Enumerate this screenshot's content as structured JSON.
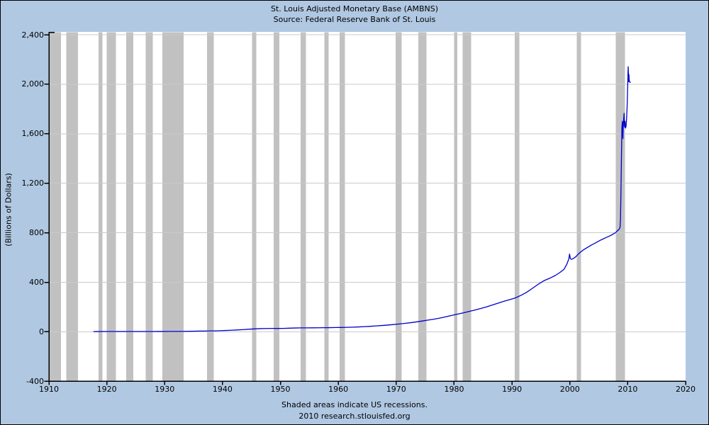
{
  "header": {
    "title": "St. Louis Adjusted Monetary Base (AMBNS)",
    "subtitle": "Source: Federal Reserve Bank of St. Louis"
  },
  "footer": {
    "note": "Shaded areas indicate US recessions.",
    "credit": "2010 research.stlouisfed.org"
  },
  "colors": {
    "page_background": "#B0C8E2",
    "plot_background": "#FFFFFF",
    "recession_band": "#C1C1C1",
    "gridline": "#CACACA",
    "line": "#0000CC",
    "axis": "#000000",
    "text": "#000000"
  },
  "chart_data": {
    "type": "line",
    "title": "St. Louis Adjusted Monetary Base (AMBNS)",
    "subtitle": "Source: Federal Reserve Bank of St. Louis",
    "xlabel": "",
    "ylabel": "(Billions of Dollars)",
    "xlim": [
      1910,
      2020
    ],
    "ylim": [
      -400,
      2400
    ],
    "grid": "horizontal",
    "legend": "none",
    "x_ticks": [
      1910,
      1920,
      1930,
      1940,
      1950,
      1960,
      1970,
      1980,
      1990,
      2000,
      2010,
      2020
    ],
    "x_tick_labels": [
      "1910",
      "1920",
      "1930",
      "1940",
      "1950",
      "1960",
      "1970",
      "1980",
      "1990",
      "2000",
      "2010",
      "2020"
    ],
    "y_ticks": [
      2400,
      2000,
      1600,
      1200,
      800,
      400,
      0,
      -400
    ],
    "y_tick_labels": [
      "2,400",
      "2,000",
      "1,600",
      "1,200",
      "800",
      "400",
      "0",
      "-400"
    ],
    "recessions_note": "Shaded areas indicate US recessions.",
    "recessions": [
      [
        1910.0,
        1912.08
      ],
      [
        1913.0,
        1915.0
      ],
      [
        1918.58,
        1919.25
      ],
      [
        1920.0,
        1921.58
      ],
      [
        1923.33,
        1924.58
      ],
      [
        1926.75,
        1927.92
      ],
      [
        1929.58,
        1933.25
      ],
      [
        1937.33,
        1938.5
      ],
      [
        1945.08,
        1945.83
      ],
      [
        1948.83,
        1949.83
      ],
      [
        1953.5,
        1954.42
      ],
      [
        1957.58,
        1958.33
      ],
      [
        1960.25,
        1961.17
      ],
      [
        1969.92,
        1970.92
      ],
      [
        1973.83,
        1975.25
      ],
      [
        1980.0,
        1980.58
      ],
      [
        1981.5,
        1982.92
      ],
      [
        1990.5,
        1991.25
      ],
      [
        2001.17,
        2001.92
      ],
      [
        2007.92,
        2009.5
      ]
    ],
    "series": [
      {
        "name": "AMBNS",
        "units": "Billions of Dollars",
        "x": [
          1917.75,
          1918.5,
          1919.5,
          1920.5,
          1921.5,
          1922.5,
          1924,
          1926,
          1928,
          1929.5,
          1931,
          1932.5,
          1933.5,
          1934.5,
          1936,
          1937.5,
          1938.5,
          1939.5,
          1940.5,
          1941.5,
          1942.5,
          1943.5,
          1944.5,
          1945.5,
          1946.5,
          1947.5,
          1948.5,
          1949.5,
          1950.5,
          1951.5,
          1952.5,
          1953.5,
          1954.5,
          1955.5,
          1956.5,
          1957.5,
          1958.5,
          1959.5,
          1960.5,
          1961.5,
          1962.5,
          1963.5,
          1964.5,
          1965.5,
          1966.5,
          1967.5,
          1968.5,
          1969.5,
          1970.5,
          1971.5,
          1972.5,
          1973.5,
          1974.5,
          1975.5,
          1976.5,
          1977.5,
          1978.5,
          1979.5,
          1980.5,
          1981.5,
          1982.5,
          1983.5,
          1984.5,
          1985.5,
          1986.5,
          1987.5,
          1988.5,
          1989.5,
          1990.5,
          1991.5,
          1992.5,
          1993.5,
          1994.5,
          1995.5,
          1996.5,
          1997.5,
          1998.25,
          1999.0,
          1999.5,
          1999.83,
          1999.95,
          2000.08,
          2000.3,
          2000.6,
          2001.0,
          2001.4,
          2001.8,
          2002.2,
          2002.7,
          2003.2,
          2003.7,
          2004.2,
          2004.7,
          2005.2,
          2005.7,
          2006.2,
          2006.7,
          2007.2,
          2007.7,
          2008.0,
          2008.25,
          2008.5,
          2008.67,
          2008.75,
          2008.83,
          2008.92,
          2009.0,
          2009.08,
          2009.17,
          2009.21,
          2009.29,
          2009.38,
          2009.42,
          2009.46,
          2009.54,
          2009.58,
          2009.63,
          2009.71,
          2009.79,
          2009.87,
          2009.92,
          2009.96,
          2010.0,
          2010.04,
          2010.08,
          2010.13,
          2010.17,
          2010.21,
          2010.25,
          2010.33,
          2010.45
        ],
        "y": [
          1.6,
          1.9,
          2.1,
          2.3,
          2.1,
          2.1,
          2.2,
          2.3,
          2.4,
          2.6,
          2.8,
          3.1,
          3.8,
          4.6,
          5.8,
          6.6,
          7.2,
          8.5,
          10.5,
          12.5,
          14.8,
          17.5,
          20.5,
          23.5,
          25.5,
          26.5,
          27.5,
          27.0,
          27.5,
          29.0,
          30.5,
          31.5,
          31.5,
          32.0,
          32.5,
          33.0,
          33.5,
          34.5,
          34.8,
          35.8,
          37.2,
          39.2,
          41.5,
          44.2,
          47.2,
          50.5,
          54.2,
          58.5,
          63.0,
          68.0,
          73.5,
          80.0,
          87.0,
          94.5,
          102.0,
          110.5,
          120.5,
          131.0,
          142.0,
          152.0,
          163.0,
          175.0,
          187.0,
          200.0,
          215.0,
          230.0,
          245.0,
          258.0,
          272.0,
          293.0,
          318.0,
          350.0,
          383.0,
          412.0,
          432.0,
          455.0,
          478.0,
          505.0,
          548.0,
          590.0,
          628.0,
          592.0,
          585.0,
          592.0,
          605.0,
          625.0,
          642.0,
          657.0,
          672.0,
          686.0,
          700.0,
          712.0,
          725.0,
          738.0,
          749.0,
          760.0,
          770.0,
          782.0,
          795.0,
          805.0,
          818.0,
          827.0,
          843.0,
          905.0,
          1130.0,
          1435.0,
          1655.0,
          1700.0,
          1560.0,
          1640.0,
          1712.0,
          1765.0,
          1690.0,
          1655.0,
          1700.0,
          1660.0,
          1646.0,
          1660.0,
          1712.0,
          1790.0,
          1850.0,
          1930.0,
          1995.0,
          2085.0,
          2142.0,
          2060.0,
          2020.0,
          2078.0,
          2040.0,
          2018.0,
          2015.0
        ]
      }
    ]
  }
}
